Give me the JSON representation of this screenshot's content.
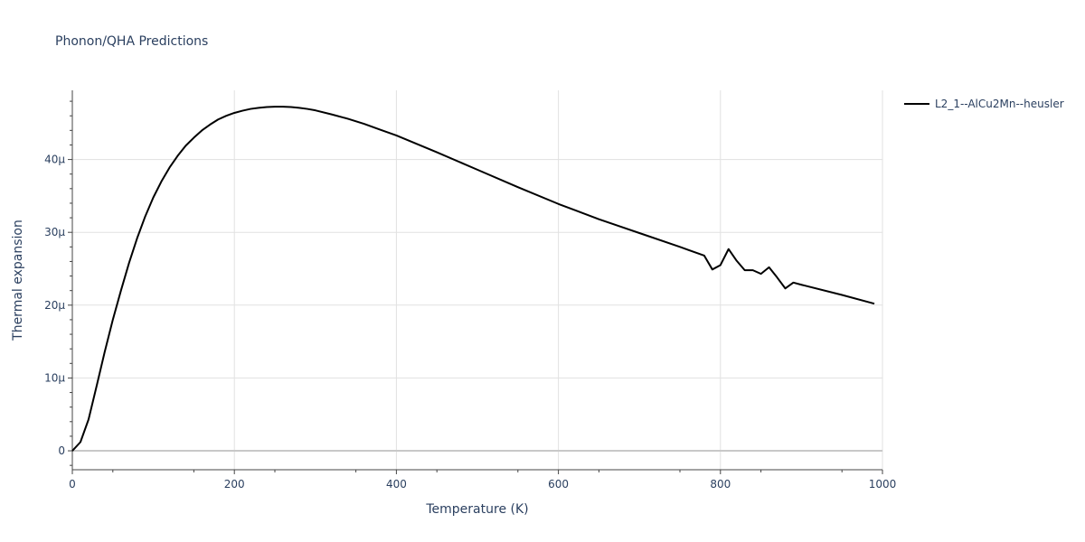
{
  "chart_data": {
    "type": "line",
    "title": "Phonon/QHA Predictions",
    "xlabel": "Temperature (K)",
    "ylabel": "Thermal expansion",
    "xlim": [
      0,
      1000
    ],
    "ylim": [
      -2.6e-06,
      4.95e-05
    ],
    "x_ticks": [
      0,
      200,
      400,
      600,
      800,
      1000
    ],
    "x_tick_labels": [
      "0",
      "200",
      "400",
      "600",
      "800",
      "1000"
    ],
    "y_ticks": [
      0,
      1e-05,
      2e-05,
      3e-05,
      4e-05
    ],
    "y_tick_labels": [
      "0",
      "10μ",
      "20μ",
      "30μ",
      "40μ"
    ],
    "grid": true,
    "legend_position": "top-right",
    "series": [
      {
        "name": "L2_1--AlCu2Mn--heusler",
        "color": "#000000",
        "x": [
          0,
          10,
          20,
          30,
          40,
          50,
          60,
          70,
          80,
          90,
          100,
          110,
          120,
          130,
          140,
          150,
          160,
          170,
          180,
          190,
          200,
          210,
          220,
          230,
          240,
          250,
          260,
          270,
          280,
          290,
          300,
          320,
          340,
          360,
          380,
          400,
          450,
          500,
          550,
          600,
          650,
          700,
          750,
          780,
          790,
          800,
          810,
          820,
          830,
          840,
          850,
          860,
          870,
          880,
          890,
          900,
          950,
          990
        ],
        "y": [
          0.0,
          1.2e-06,
          4.3e-06,
          8.9e-06,
          1.36e-05,
          1.8e-05,
          2.2e-05,
          2.58e-05,
          2.92e-05,
          3.22e-05,
          3.48e-05,
          3.7e-05,
          3.89e-05,
          4.05e-05,
          4.19e-05,
          4.3e-05,
          4.4e-05,
          4.48e-05,
          4.55e-05,
          4.6e-05,
          4.64e-05,
          4.67e-05,
          4.695e-05,
          4.71e-05,
          4.72e-05,
          4.725e-05,
          4.725e-05,
          4.72e-05,
          4.71e-05,
          4.695e-05,
          4.675e-05,
          4.62e-05,
          4.56e-05,
          4.49e-05,
          4.41e-05,
          4.33e-05,
          4.1e-05,
          3.86e-05,
          3.62e-05,
          3.39e-05,
          3.18e-05,
          2.99e-05,
          2.8e-05,
          2.68e-05,
          2.49e-05,
          2.55e-05,
          2.77e-05,
          2.61e-05,
          2.48e-05,
          2.48e-05,
          2.43e-05,
          2.52e-05,
          2.38e-05,
          2.23e-05,
          2.31e-05,
          2.28e-05,
          2.14e-05,
          2.02e-05
        ]
      }
    ]
  }
}
